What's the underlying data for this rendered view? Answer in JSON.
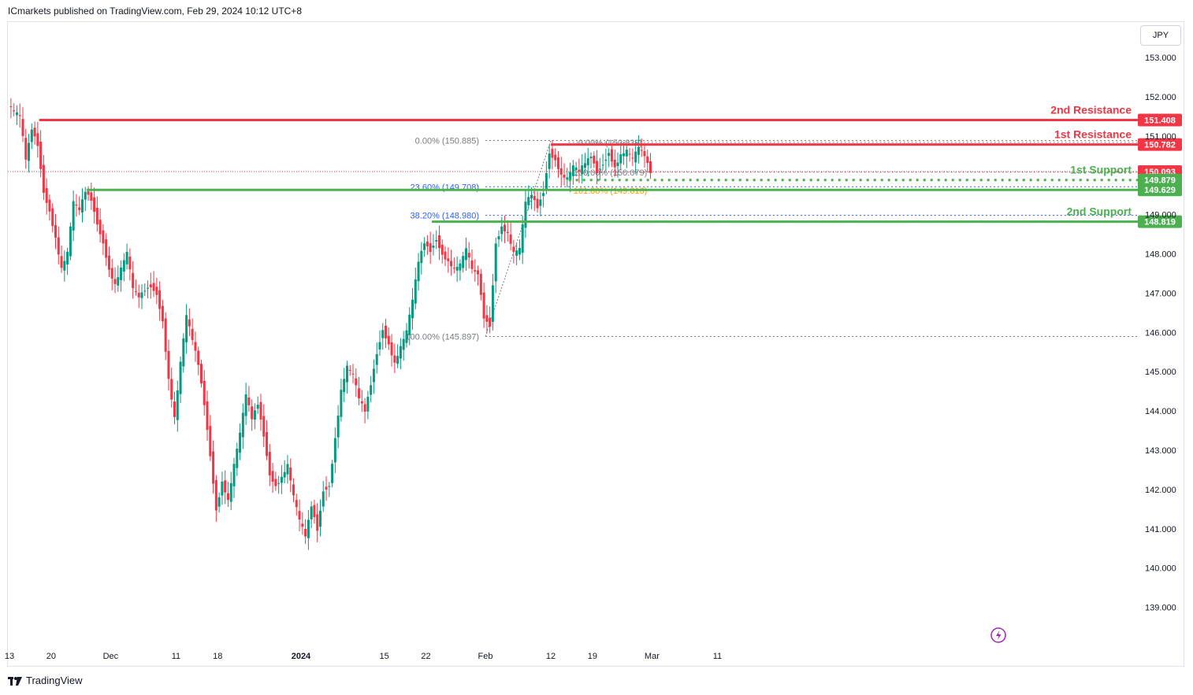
{
  "header": {
    "published": "ICmarkets published on TradingView.com, Feb 29, 2024 10:12 UTC+8"
  },
  "toolbar": {
    "currency": "JPY"
  },
  "footer": {
    "brand": "TradingView"
  },
  "colors": {
    "up": "#089981",
    "down": "#f23645",
    "resistance": "#f23645",
    "support": "#4caf50",
    "fib": "#2962ff",
    "fib_gold": "#ff9800"
  },
  "chart_data": {
    "type": "candlestick",
    "title": "",
    "currency": "JPY",
    "ylim": [
      138.3,
      153.5
    ],
    "y_ticks": [
      {
        "v": 153,
        "label": "153.000"
      },
      {
        "v": 152,
        "label": "152.000"
      },
      {
        "v": 151,
        "label": "151.000"
      },
      {
        "v": 149,
        "label": "149.000"
      },
      {
        "v": 148,
        "label": "148.000"
      },
      {
        "v": 147,
        "label": "147.000"
      },
      {
        "v": 146,
        "label": "146.000"
      },
      {
        "v": 145,
        "label": "145.000"
      },
      {
        "v": 144,
        "label": "144.000"
      },
      {
        "v": 143,
        "label": "143.000"
      },
      {
        "v": 142,
        "label": "142.000"
      },
      {
        "v": 141,
        "label": "141.000"
      },
      {
        "v": 140,
        "label": "140.000"
      },
      {
        "v": 139,
        "label": "139.000"
      }
    ],
    "x_ticks": [
      {
        "t": 0,
        "label": "13",
        "bold": false
      },
      {
        "t": 7,
        "label": "20",
        "bold": false
      },
      {
        "t": 17,
        "label": "Dec",
        "bold": false
      },
      {
        "t": 28,
        "label": "11",
        "bold": false
      },
      {
        "t": 35,
        "label": "18",
        "bold": false
      },
      {
        "t": 49,
        "label": "2024",
        "bold": true
      },
      {
        "t": 63,
        "label": "15",
        "bold": false
      },
      {
        "t": 70,
        "label": "22",
        "bold": false
      },
      {
        "t": 80,
        "label": "Feb",
        "bold": false
      },
      {
        "t": 91,
        "label": "12",
        "bold": false
      },
      {
        "t": 98,
        "label": "19",
        "bold": false
      },
      {
        "t": 108,
        "label": "Mar",
        "bold": false
      },
      {
        "t": 119,
        "label": "11",
        "bold": false
      }
    ],
    "closes": [
      [
        0,
        151.8
      ],
      [
        1,
        151.6
      ],
      [
        2,
        151.5
      ],
      [
        3,
        150.4
      ],
      [
        4,
        151.2
      ],
      [
        5,
        150.8
      ],
      [
        6,
        149.6
      ],
      [
        7,
        149.1
      ],
      [
        8,
        148.4
      ],
      [
        9,
        147.6
      ],
      [
        10,
        148.0
      ],
      [
        11,
        149.3
      ],
      [
        12,
        149.1
      ],
      [
        13,
        149.6
      ],
      [
        14,
        149.4
      ],
      [
        15,
        148.8
      ],
      [
        16,
        148.3
      ],
      [
        17,
        147.6
      ],
      [
        18,
        147.2
      ],
      [
        19,
        147.6
      ],
      [
        20,
        148.0
      ],
      [
        21,
        147.1
      ],
      [
        22,
        146.9
      ],
      [
        23,
        147.1
      ],
      [
        24,
        147.2
      ],
      [
        25,
        147.0
      ],
      [
        26,
        146.3
      ],
      [
        27,
        144.8
      ],
      [
        28,
        143.8
      ],
      [
        29,
        145.2
      ],
      [
        30,
        146.4
      ],
      [
        31,
        145.8
      ],
      [
        32,
        145.2
      ],
      [
        33,
        144.2
      ],
      [
        34,
        142.9
      ],
      [
        35,
        141.5
      ],
      [
        36,
        142.2
      ],
      [
        37,
        141.7
      ],
      [
        38,
        142.6
      ],
      [
        39,
        143.4
      ],
      [
        40,
        144.4
      ],
      [
        41,
        143.8
      ],
      [
        42,
        144.2
      ],
      [
        43,
        143.4
      ],
      [
        44,
        142.4
      ],
      [
        45,
        142.1
      ],
      [
        46,
        142.3
      ],
      [
        47,
        142.6
      ],
      [
        48,
        141.8
      ],
      [
        49,
        141.2
      ],
      [
        50,
        140.8
      ],
      [
        51,
        141.6
      ],
      [
        52,
        141.0
      ],
      [
        53,
        142.0
      ],
      [
        54,
        142.1
      ],
      [
        55,
        143.3
      ],
      [
        56,
        144.5
      ],
      [
        57,
        145.1
      ],
      [
        58,
        144.9
      ],
      [
        59,
        144.3
      ],
      [
        60,
        144.0
      ],
      [
        61,
        144.7
      ],
      [
        62,
        145.5
      ],
      [
        63,
        146.1
      ],
      [
        64,
        145.7
      ],
      [
        65,
        145.2
      ],
      [
        66,
        145.6
      ],
      [
        67,
        146.0
      ],
      [
        68,
        146.8
      ],
      [
        69,
        147.8
      ],
      [
        70,
        148.3
      ],
      [
        71,
        148.1
      ],
      [
        72,
        148.4
      ],
      [
        73,
        148.0
      ],
      [
        74,
        147.8
      ],
      [
        75,
        147.6
      ],
      [
        76,
        147.7
      ],
      [
        77,
        148.1
      ],
      [
        78,
        147.6
      ],
      [
        79,
        147.5
      ],
      [
        80,
        146.4
      ],
      [
        81,
        146.2
      ],
      [
        82,
        148.3
      ],
      [
        83,
        148.7
      ],
      [
        84,
        148.5
      ],
      [
        85,
        148.0
      ],
      [
        86,
        148.1
      ],
      [
        87,
        149.3
      ],
      [
        88,
        149.5
      ],
      [
        89,
        149.2
      ],
      [
        90,
        149.6
      ],
      [
        91,
        150.6
      ],
      [
        92,
        150.4
      ],
      [
        93,
        150.0
      ],
      [
        94,
        149.9
      ],
      [
        95,
        150.2
      ],
      [
        96,
        150.1
      ],
      [
        97,
        150.3
      ],
      [
        98,
        150.5
      ],
      [
        99,
        150.1
      ],
      [
        100,
        150.3
      ],
      [
        101,
        150.6
      ],
      [
        102,
        150.2
      ],
      [
        103,
        150.5
      ],
      [
        104,
        150.6
      ],
      [
        105,
        150.4
      ],
      [
        106,
        150.7
      ],
      [
        107,
        150.5
      ],
      [
        108,
        150.1
      ]
    ],
    "levels": [
      {
        "price": 151.408,
        "label": "2nd Resistance",
        "tag": "151.408",
        "kind": "resistance",
        "from_t": 5
      },
      {
        "price": 150.782,
        "label": "1st Resistance",
        "tag": "150.782",
        "kind": "resistance",
        "from_t": 91
      },
      {
        "price": 149.879,
        "label": "1st Support",
        "tag": "149.879",
        "kind": "support_dotted",
        "from_t": 94
      },
      {
        "price": 149.629,
        "label": "",
        "tag": "149.629",
        "kind": "support",
        "from_t": 13
      },
      {
        "price": 148.819,
        "label": "2nd Support",
        "tag": "148.819",
        "kind": "support",
        "from_t": 71
      }
    ],
    "current_price": {
      "price": 150.093,
      "tag": "150.093"
    },
    "fib_left": [
      {
        "price": 150.885,
        "label": "0.00% (150.885)",
        "color": "#787b86"
      },
      {
        "price": 149.708,
        "label": "23.60% (149.708)",
        "color": "#2962ff"
      },
      {
        "price": 148.98,
        "label": "38.20% (148.980)",
        "color": "#2962ff"
      },
      {
        "price": 145.897,
        "label": "100.00% (145.897)",
        "color": "#787b86"
      }
    ],
    "fib_right": [
      {
        "price": 150.839,
        "label": "0.00% (150.839)",
        "color": "#787b86"
      },
      {
        "price": 150.079,
        "label": "100.00% (150.079)",
        "color": "#787b86"
      },
      {
        "price": 149.616,
        "label": "161.80% (149.616)",
        "color": "#ff9800"
      }
    ]
  }
}
